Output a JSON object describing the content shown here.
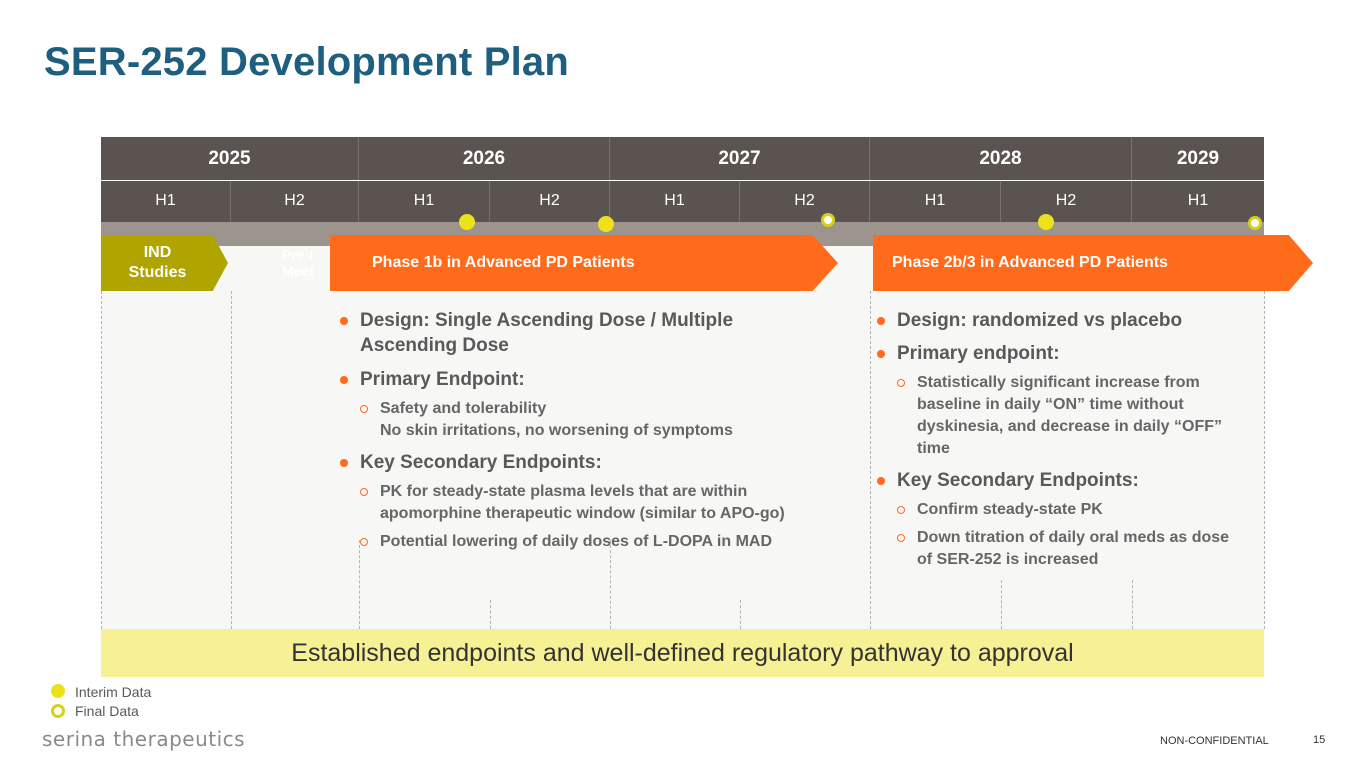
{
  "title": "SER-252 Development Plan",
  "years": [
    "2025",
    "2026",
    "2027",
    "2028",
    "2029"
  ],
  "halves": [
    "H1",
    "H2",
    "H1",
    "H2",
    "H1",
    "H2",
    "H1",
    "H2",
    "H1"
  ],
  "ind_label": "IND\nStudies",
  "pre_meeting_label": "Pre-I\nMeet",
  "phase1": {
    "label": "Phase 1b in Advanced PD Patients",
    "design": "Design: Single Ascending Dose / Multiple Ascending Dose",
    "primary": "Primary Endpoint:",
    "primary_items": [
      "Safety and tolerability\nNo skin irritations, no worsening of symptoms"
    ],
    "secondary": "Key Secondary Endpoints:",
    "secondary_items": [
      "PK for steady-state plasma levels that are within apomorphine therapeutic window (similar to APO-go)",
      "Potential lowering of daily doses of L-DOPA in MAD"
    ]
  },
  "phase2": {
    "label": "Phase 2b/3 in Advanced PD Patients",
    "design": "Design: randomized vs placebo",
    "primary": "Primary endpoint:",
    "primary_items": [
      "Statistically significant increase from baseline in daily “ON” time without dyskinesia, and decrease in daily “OFF” time"
    ],
    "secondary": "Key Secondary Endpoints:",
    "secondary_items": [
      "Confirm steady-state PK",
      "Down titration of daily oral meds as dose of SER-252 is increased"
    ]
  },
  "banner": "Established endpoints and well-defined regulatory pathway to approval",
  "legend": {
    "interim": "Interim Data",
    "final": "Final Data"
  },
  "logo": "serina therapeutics",
  "footer": {
    "confidentiality": "NON-CONFIDENTIAL",
    "page_number": "15"
  },
  "colors": {
    "title": "#1e5f7f",
    "header": "#5b5350",
    "phase": "#ff6b1a",
    "ind": "#b0a500",
    "banner": "#f6f195",
    "milestone": "#ede21a"
  }
}
